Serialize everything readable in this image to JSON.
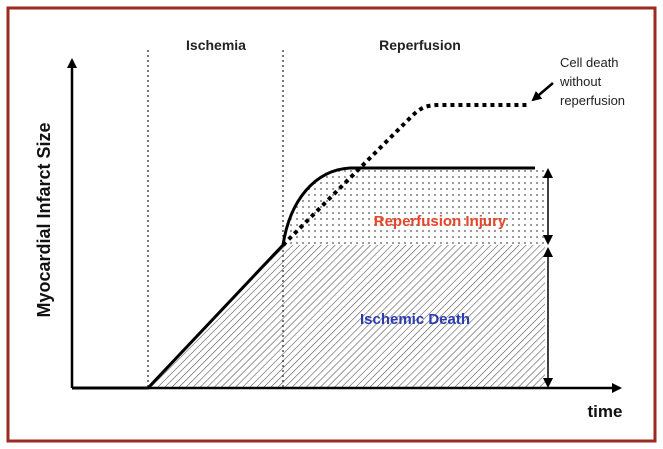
{
  "title": {
    "ischemia": "Ischemia",
    "reperfusion": "Reperfusion"
  },
  "axes": {
    "y_label": "Myocardial Infarct Size",
    "x_label": "time"
  },
  "annotations": {
    "no_reperfusion": [
      "Cell death",
      "without",
      "reperfusion"
    ],
    "reperfusion_injury": "Reperfusion Injury",
    "ischemic_death": "Ischemic Death"
  }
}
